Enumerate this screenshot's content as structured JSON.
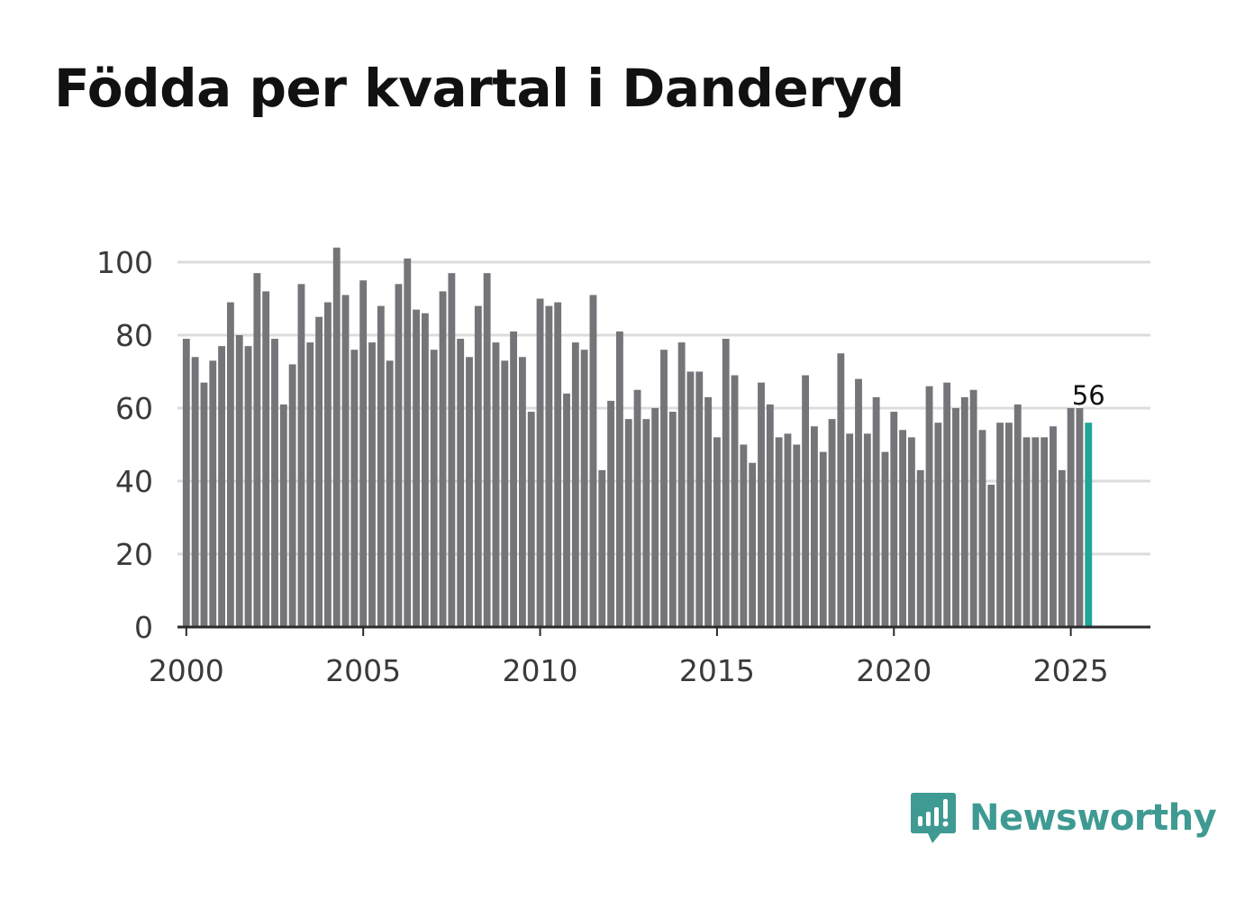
{
  "title": "Födda per kvartal i Danderyd",
  "brand": {
    "name": "Newsworthy",
    "logo_icon": "newsworthy-bars-logo-icon"
  },
  "colors": {
    "bar": "#747479",
    "highlight": "#1fa596",
    "grid": "#dcdcdc",
    "axis": "#2b2b2b",
    "brand": "#3e9a92"
  },
  "chart_data": {
    "type": "bar",
    "title": "Födda per kvartal i Danderyd",
    "xlabel": "",
    "ylabel": "",
    "ylim": [
      0,
      105
    ],
    "yticks": [
      0,
      20,
      40,
      60,
      80,
      100
    ],
    "xticks": [
      2000,
      2005,
      2010,
      2015,
      2020,
      2025
    ],
    "xlim": [
      1999.75,
      2027.25
    ],
    "grid": true,
    "start_year": 2000,
    "periods_per_year": 4,
    "values": [
      79,
      74,
      67,
      73,
      77,
      89,
      80,
      77,
      97,
      92,
      79,
      61,
      72,
      94,
      78,
      85,
      89,
      104,
      91,
      76,
      95,
      78,
      88,
      73,
      94,
      101,
      87,
      86,
      76,
      92,
      97,
      79,
      74,
      88,
      97,
      78,
      73,
      81,
      74,
      59,
      90,
      88,
      89,
      64,
      78,
      76,
      91,
      43,
      62,
      81,
      57,
      65,
      57,
      60,
      76,
      59,
      78,
      70,
      70,
      63,
      52,
      79,
      69,
      50,
      45,
      67,
      61,
      52,
      53,
      50,
      69,
      55,
      48,
      57,
      75,
      53,
      68,
      53,
      63,
      48,
      59,
      54,
      52,
      43,
      66,
      56,
      67,
      60,
      63,
      65,
      54,
      39,
      56,
      56,
      61,
      52,
      52,
      52,
      55,
      43,
      60,
      60,
      56
    ],
    "highlight_index": 102,
    "annotations": [
      {
        "index": 102,
        "text": "56"
      }
    ]
  }
}
